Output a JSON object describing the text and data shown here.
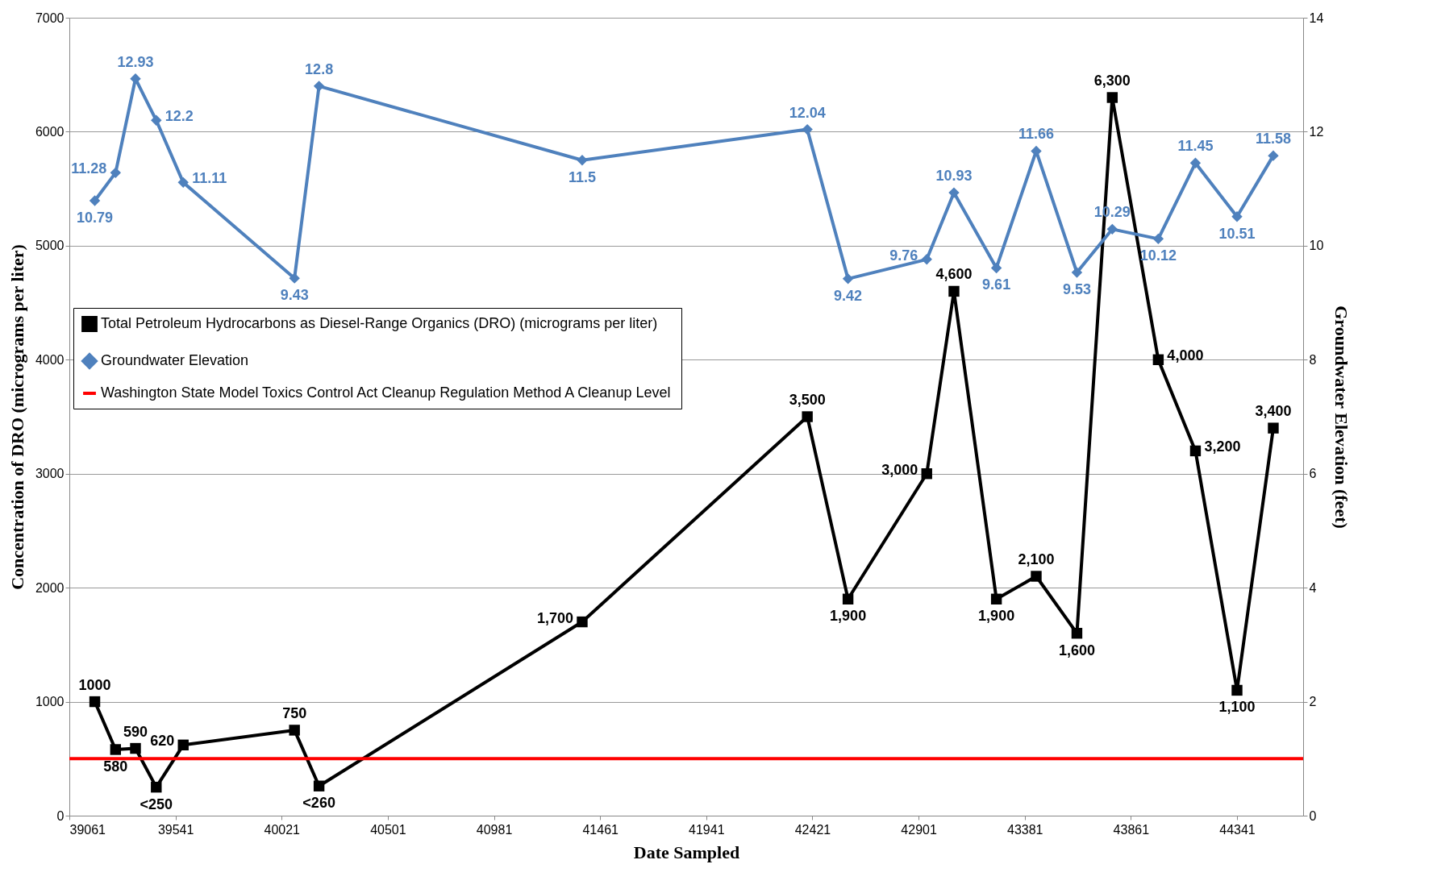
{
  "chart_data": {
    "type": "line",
    "xlabel": "Date Sampled",
    "ylabel": "Concentration of DRO (micrograms per liter)",
    "y2label": "Groundwater Elevation (feet)",
    "x": [
      39176,
      39270,
      39360,
      39454,
      39576,
      40079,
      40190,
      41380,
      42398,
      42582,
      42938,
      43061,
      43253,
      43433,
      43617,
      43777,
      43985,
      44153,
      44341,
      44505
    ],
    "series": [
      {
        "name": "Total Petroleum Hydrocarbons as Diesel-Range Organics (DRO) (micrograms per liter)",
        "color": "#000000",
        "marker": "square",
        "values": [
          1000,
          580,
          590,
          250,
          620,
          750,
          260,
          1700,
          3500,
          1900,
          3000,
          4600,
          1900,
          2100,
          1600,
          6300,
          4000,
          3200,
          1100,
          3400
        ],
        "value_labels": [
          "1000",
          "580",
          "590",
          "<250",
          "620",
          "750",
          "<260",
          "1,700",
          "3,500",
          "1,900",
          "3,000",
          "4,600",
          "1,900",
          "2,100",
          "1,600",
          "6,300",
          "4,000",
          "3,200",
          "1,100",
          "3,400"
        ]
      },
      {
        "name": "Groundwater Elevation",
        "color": "#4f81bd",
        "marker": "diamond",
        "axis": "y2",
        "values": [
          10.79,
          11.28,
          12.93,
          12.2,
          11.11,
          9.43,
          12.8,
          11.5,
          12.04,
          9.42,
          9.76,
          10.93,
          9.61,
          11.66,
          9.53,
          10.29,
          10.12,
          11.45,
          10.51,
          11.58
        ],
        "value_labels": [
          "10.79",
          "11.28",
          "12.93",
          "12.2",
          "11.11",
          "9.43",
          "12.8",
          "11.5",
          "12.04",
          "9.42",
          "9.76",
          "10.93",
          "9.61",
          "11.66",
          "9.53",
          "10.29",
          "10.12",
          "11.45",
          "10.51",
          "11.58"
        ]
      }
    ],
    "ref_lines": [
      {
        "axis": "y",
        "value": 500,
        "label": "Washington State Model Toxics Control Act Cleanup Regulation Method A Cleanup Level",
        "color": "#ff0000"
      }
    ],
    "xlim": [
      39061,
      44640
    ],
    "xticks": [
      39061,
      39541,
      40021,
      40501,
      40981,
      41461,
      41941,
      42421,
      42901,
      43381,
      43861,
      44341
    ],
    "ylim": [
      0,
      7000
    ],
    "yticks": [
      0,
      1000,
      2000,
      3000,
      4000,
      5000,
      6000,
      7000
    ],
    "y2lim": [
      0,
      14
    ],
    "y2ticks": [
      0,
      2,
      4,
      6,
      8,
      10,
      12,
      14
    ],
    "grid": "y",
    "legend": "left",
    "line_style": "solid"
  }
}
